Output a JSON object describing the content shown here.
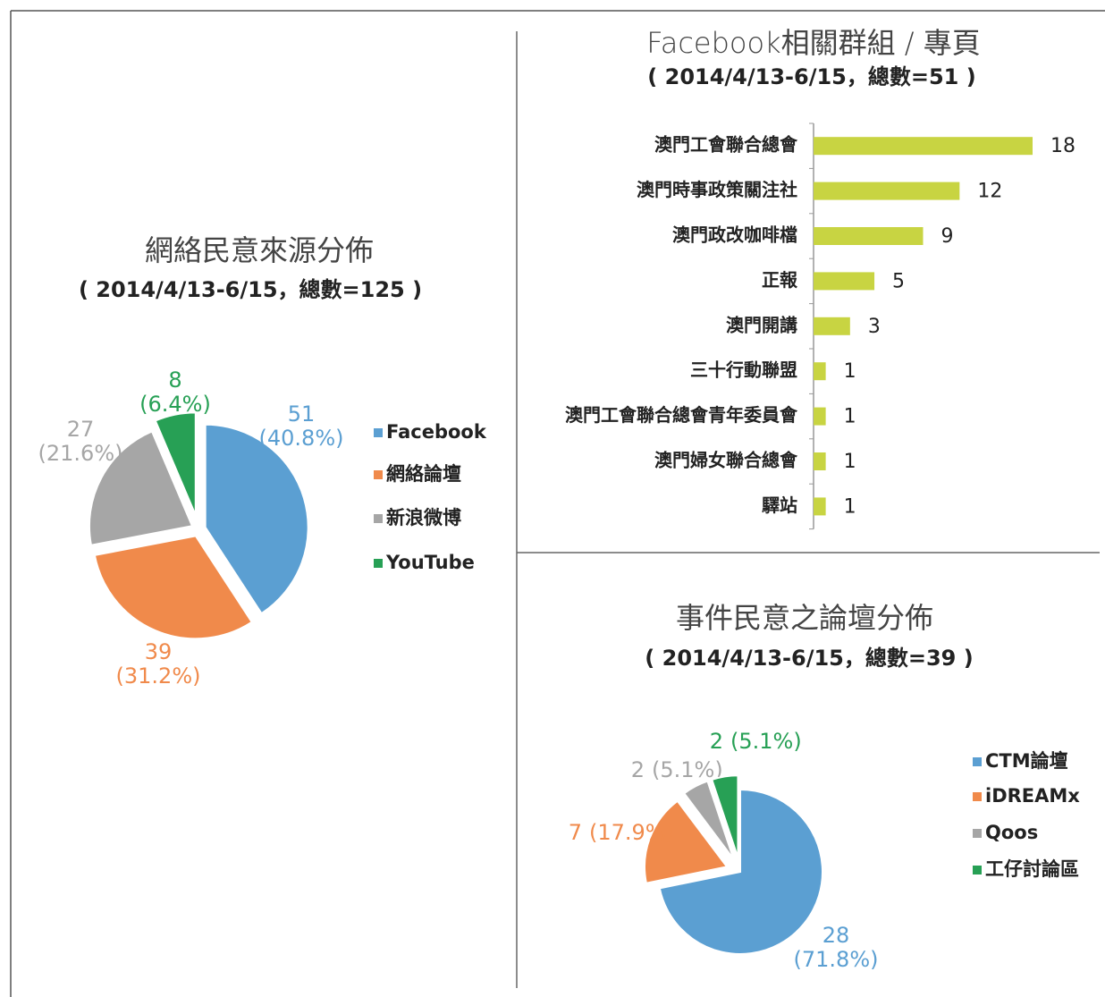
{
  "chart_data": [
    {
      "type": "pie",
      "title": "網絡民意來源分佈",
      "subtitle": "( 2014/4/13-6/15，總數=125 )",
      "categories": [
        "Facebook",
        "網絡論壇",
        "新浪微博",
        "YouTube"
      ],
      "values": [
        51,
        39,
        27,
        8
      ],
      "percent_labels": [
        "(40.8%)",
        "(31.2%)",
        "(21.6%)",
        "(6.4%)"
      ],
      "colors": [
        "#5b9fd2",
        "#f08a4b",
        "#a6a6a6",
        "#27a055"
      ]
    },
    {
      "type": "hbar",
      "title": "Facebook相關群組 / 專頁",
      "subtitle": "( 2014/4/13-6/15，總數=51 )",
      "categories": [
        "澳門工會聯合總會",
        "澳門時事政策關注社",
        "澳門政改咖啡檔",
        "正報",
        "澳門開講",
        "三十行動聯盟",
        "澳門工會聯合總會青年委員會",
        "澳門婦女聯合總會",
        "驛站"
      ],
      "values": [
        18,
        12,
        9,
        5,
        3,
        1,
        1,
        1,
        1
      ],
      "color": "#c8d442",
      "xlim": [
        0,
        18
      ]
    },
    {
      "type": "pie",
      "title": "事件民意之論壇分佈",
      "subtitle": "( 2014/4/13-6/15，總數=39 )",
      "categories": [
        "CTM論壇",
        "iDREAMx",
        "Qoos",
        "工仔討論區"
      ],
      "values": [
        28,
        7,
        2,
        2
      ],
      "percent_labels": [
        "(71.8%)",
        "(17.9%)",
        "(5.1%)",
        "(5.1%)"
      ],
      "colors": [
        "#5b9fd2",
        "#f08a4b",
        "#a6a6a6",
        "#27a055"
      ]
    }
  ]
}
